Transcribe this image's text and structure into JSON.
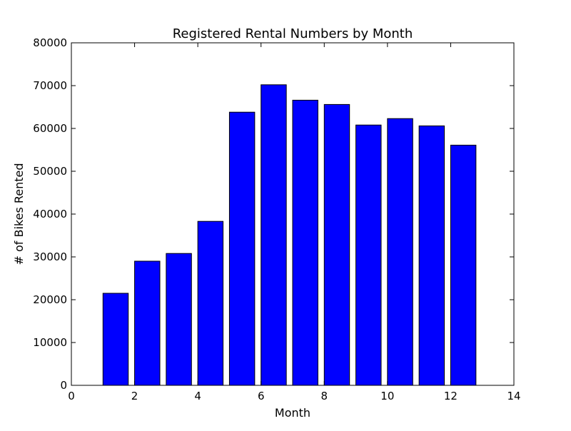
{
  "chart_data": {
    "type": "bar",
    "title": "Registered Rental Numbers by Month",
    "xlabel": "Month",
    "ylabel": "# of Bikes Rented",
    "xlim": [
      0,
      14
    ],
    "ylim": [
      0,
      80000
    ],
    "xticks": [
      0,
      2,
      4,
      6,
      8,
      10,
      12,
      14
    ],
    "yticks": [
      0,
      10000,
      20000,
      30000,
      40000,
      50000,
      60000,
      70000,
      80000
    ],
    "bar_width": 0.8,
    "bar_color": "#0000ff",
    "edge_color": "#000000",
    "grid": false,
    "legend": "none",
    "x": [
      1,
      2,
      3,
      4,
      5,
      6,
      7,
      8,
      9,
      10,
      11,
      12
    ],
    "values": [
      21500,
      29000,
      30800,
      38300,
      63800,
      70200,
      66600,
      65600,
      60800,
      62300,
      60600,
      56100
    ]
  }
}
